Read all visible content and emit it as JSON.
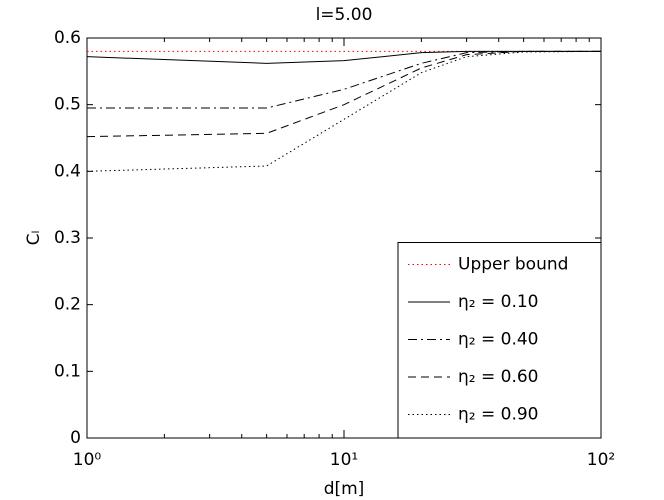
{
  "chart_data": {
    "type": "line",
    "title": "l=5.00",
    "xlabel": "d[m]",
    "ylabel": "Cₗ",
    "xscale": "log",
    "x": [
      1,
      5,
      10,
      20,
      30,
      50,
      100
    ],
    "xlim": [
      1,
      100
    ],
    "xticks": [
      {
        "value": 1,
        "label": "10⁰"
      },
      {
        "value": 10,
        "label": "10¹"
      },
      {
        "value": 100,
        "label": "10²"
      }
    ],
    "ylim": [
      0,
      0.6
    ],
    "yticks": [
      0,
      0.1,
      0.2,
      0.3,
      0.4,
      0.5,
      0.6
    ],
    "grid": false,
    "legend": "lower right",
    "series": [
      {
        "name": "Upper bound",
        "color": "#ff0000",
        "linestyle": "dotted",
        "values": [
          0.58,
          0.58,
          0.58,
          0.58,
          0.58,
          0.58,
          0.58
        ]
      },
      {
        "name": "η₂ = 0.10",
        "color": "#000000",
        "linestyle": "solid",
        "values": [
          0.572,
          0.562,
          0.566,
          0.578,
          0.58,
          0.58,
          0.58
        ]
      },
      {
        "name": "η₂ = 0.40",
        "color": "#000000",
        "linestyle": "dashdot",
        "values": [
          0.495,
          0.495,
          0.523,
          0.562,
          0.578,
          0.58,
          0.58
        ]
      },
      {
        "name": "η₂ = 0.60",
        "color": "#000000",
        "linestyle": "dashed",
        "values": [
          0.452,
          0.457,
          0.5,
          0.555,
          0.575,
          0.58,
          0.58
        ]
      },
      {
        "name": "η₂ = 0.90",
        "color": "#000000",
        "linestyle": "dotted",
        "values": [
          0.4,
          0.408,
          0.478,
          0.548,
          0.572,
          0.579,
          0.58
        ]
      }
    ]
  }
}
